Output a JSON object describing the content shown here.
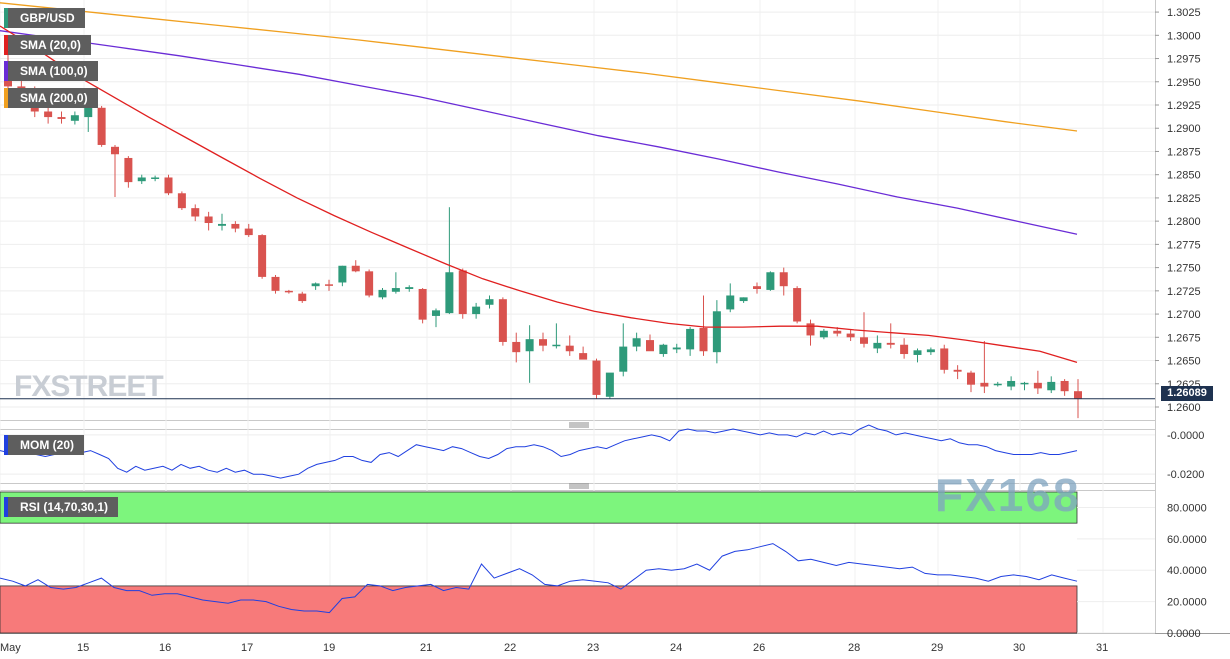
{
  "symbol": "GBP/USD",
  "indicators": {
    "sma20": {
      "label": "SMA (20,0)",
      "color": "#e02020"
    },
    "sma100": {
      "label": "SMA (100,0)",
      "color": "#6a2cd6"
    },
    "sma200": {
      "label": "SMA (200,0)",
      "color": "#f0a020"
    },
    "mom": {
      "label": "MOM (20)",
      "color": "#2040e0"
    },
    "rsi": {
      "label": "RSI (14,70,30,1)",
      "color": "#2040e0",
      "overbought": 70,
      "oversold": 30
    }
  },
  "last_price_label": "1.26089",
  "watermarks": {
    "fxstreet": "FXSTREET",
    "fx168": "FX168"
  },
  "colors": {
    "bull": "#2e9a7a",
    "bear": "#d9534f",
    "overbought_fill": "#7df57d",
    "oversold_fill": "#f77a7a"
  },
  "chart_data": {
    "type": "candlestick",
    "x_tick_labels": [
      "May",
      "15",
      "16",
      "17",
      "19",
      "21",
      "22",
      "23",
      "24",
      "26",
      "28",
      "29",
      "30",
      "31"
    ],
    "price_axis": {
      "ylim": [
        1.2586,
        1.3038
      ],
      "ticks": [
        "1.3025",
        "1.3000",
        "1.2975",
        "1.2950",
        "1.2925",
        "1.2900",
        "1.2875",
        "1.2850",
        "1.2825",
        "1.2800",
        "1.2775",
        "1.2750",
        "1.2725",
        "1.2700",
        "1.2675",
        "1.2650",
        "1.2625",
        "1.2600"
      ]
    },
    "last_price": 1.26089,
    "candles": [
      [
        1.2958,
        1.299,
        1.294,
        1.2945
      ],
      [
        1.2945,
        1.296,
        1.293,
        1.294
      ],
      [
        1.2935,
        1.2945,
        1.2912,
        1.2918
      ],
      [
        1.2918,
        1.2925,
        1.2905,
        1.2912
      ],
      [
        1.2912,
        1.2918,
        1.2905,
        1.291
      ],
      [
        1.2908,
        1.2918,
        1.2904,
        1.2914
      ],
      [
        1.2912,
        1.2928,
        1.2896,
        1.2924
      ],
      [
        1.2922,
        1.2924,
        1.288,
        1.2882
      ],
      [
        1.288,
        1.2882,
        1.2826,
        1.2872
      ],
      [
        1.2868,
        1.287,
        1.2836,
        1.2842
      ],
      [
        1.2843,
        1.285,
        1.284,
        1.2847
      ],
      [
        1.2847,
        1.2849,
        1.2843,
        1.2847
      ],
      [
        1.2847,
        1.285,
        1.2828,
        1.283
      ],
      [
        1.283,
        1.2832,
        1.2812,
        1.2814
      ],
      [
        1.2814,
        1.2818,
        1.28,
        1.2805
      ],
      [
        1.2805,
        1.281,
        1.279,
        1.2798
      ],
      [
        1.2795,
        1.2808,
        1.279,
        1.2797
      ],
      [
        1.2797,
        1.28,
        1.2788,
        1.2792
      ],
      [
        1.2792,
        1.2797,
        1.2783,
        1.2785
      ],
      [
        1.2785,
        1.2786,
        1.2738,
        1.274
      ],
      [
        1.274,
        1.2742,
        1.2722,
        1.2725
      ],
      [
        1.2725,
        1.2726,
        1.2722,
        1.2724
      ],
      [
        1.2722,
        1.2724,
        1.2712,
        1.2714
      ],
      [
        1.273,
        1.2734,
        1.2726,
        1.2733
      ],
      [
        1.2732,
        1.2737,
        1.2725,
        1.2731
      ],
      [
        1.2734,
        1.2752,
        1.273,
        1.2752
      ],
      [
        1.2752,
        1.2758,
        1.2745,
        1.2746
      ],
      [
        1.2746,
        1.2748,
        1.2718,
        1.272
      ],
      [
        1.2718,
        1.2728,
        1.2716,
        1.2726
      ],
      [
        1.2724,
        1.2745,
        1.2722,
        1.2728
      ],
      [
        1.2727,
        1.2731,
        1.2724,
        1.2729
      ],
      [
        1.2727,
        1.2728,
        1.269,
        1.2694
      ],
      [
        1.2698,
        1.2706,
        1.2686,
        1.2704
      ],
      [
        1.2701,
        1.2815,
        1.27,
        1.2745
      ],
      [
        1.2747,
        1.2749,
        1.2695,
        1.27
      ],
      [
        1.27,
        1.2712,
        1.2695,
        1.2708
      ],
      [
        1.271,
        1.272,
        1.2706,
        1.2716
      ],
      [
        1.2716,
        1.2718,
        1.2666,
        1.267
      ],
      [
        1.267,
        1.268,
        1.2648,
        1.2659
      ],
      [
        1.266,
        1.2688,
        1.2626,
        1.2673
      ],
      [
        1.2673,
        1.268,
        1.266,
        1.2666
      ],
      [
        1.2667,
        1.269,
        1.2663,
        1.2667
      ],
      [
        1.2666,
        1.2677,
        1.2655,
        1.266
      ],
      [
        1.2658,
        1.2665,
        1.2652,
        1.2651
      ],
      [
        1.265,
        1.2652,
        1.2609,
        1.2613
      ],
      [
        1.2611,
        1.2635,
        1.2609,
        1.2637
      ],
      [
        1.2638,
        1.269,
        1.2633,
        1.2665
      ],
      [
        1.2665,
        1.268,
        1.266,
        1.2674
      ],
      [
        1.2672,
        1.2678,
        1.2663,
        1.266
      ],
      [
        1.2657,
        1.2668,
        1.2654,
        1.2667
      ],
      [
        1.2662,
        1.2668,
        1.2658,
        1.2664
      ],
      [
        1.2662,
        1.2686,
        1.2655,
        1.2684
      ],
      [
        1.2685,
        1.272,
        1.2655,
        1.266
      ],
      [
        1.2659,
        1.2715,
        1.2647,
        1.2703
      ],
      [
        1.2705,
        1.2733,
        1.2702,
        1.272
      ],
      [
        1.2714,
        1.2718,
        1.2712,
        1.2718
      ],
      [
        1.273,
        1.2734,
        1.2722,
        1.2727
      ],
      [
        1.2726,
        1.2746,
        1.2725,
        1.2745
      ],
      [
        1.2745,
        1.275,
        1.272,
        1.273
      ],
      [
        1.2728,
        1.273,
        1.269,
        1.2692
      ],
      [
        1.269,
        1.2694,
        1.2666,
        1.2677
      ],
      [
        1.2675,
        1.2684,
        1.2673,
        1.2682
      ],
      [
        1.2682,
        1.2686,
        1.2676,
        1.2679
      ],
      [
        1.2679,
        1.2683,
        1.2671,
        1.2675
      ],
      [
        1.2675,
        1.2702,
        1.2664,
        1.2668
      ],
      [
        1.2663,
        1.2677,
        1.2658,
        1.2669
      ],
      [
        1.2669,
        1.269,
        1.2663,
        1.2667
      ],
      [
        1.2667,
        1.2674,
        1.2652,
        1.2657
      ],
      [
        1.2656,
        1.2663,
        1.2648,
        1.2661
      ],
      [
        1.2659,
        1.2664,
        1.2656,
        1.2662
      ],
      [
        1.2663,
        1.2667,
        1.2636,
        1.264
      ],
      [
        1.264,
        1.2645,
        1.263,
        1.2638
      ],
      [
        1.2637,
        1.2639,
        1.2616,
        1.2624
      ],
      [
        1.2626,
        1.2671,
        1.2615,
        1.2622
      ],
      [
        1.2624,
        1.2627,
        1.2622,
        1.2625
      ],
      [
        1.2622,
        1.2633,
        1.2618,
        1.2628
      ],
      [
        1.2626,
        1.2627,
        1.2618,
        1.2626
      ],
      [
        1.2626,
        1.2639,
        1.2614,
        1.262
      ],
      [
        1.2618,
        1.2633,
        1.2615,
        1.2627
      ],
      [
        1.2628,
        1.263,
        1.2612,
        1.2617
      ],
      [
        1.2617,
        1.263,
        1.2588,
        1.2609
      ]
    ],
    "sma20": [
      1.301,
      1.2985,
      1.2958,
      1.2935,
      1.2912,
      1.289,
      1.2868,
      1.2846,
      1.2825,
      1.2806,
      1.2788,
      1.2771,
      1.2754,
      1.2738,
      1.2725,
      1.2713,
      1.2703,
      1.2696,
      1.269,
      1.2686,
      1.2686,
      1.2687,
      1.2687,
      1.2683,
      1.268,
      1.2677,
      1.2672,
      1.2666,
      1.266,
      1.2648
    ],
    "sma100": [
      1.3005,
      1.2996,
      1.2987,
      1.2978,
      1.2968,
      1.2958,
      1.2946,
      1.2934,
      1.292,
      1.2906,
      1.2892,
      1.288,
      1.2867,
      1.2853,
      1.284,
      1.2826,
      1.2814,
      1.28,
      1.2786
    ],
    "sma200": [
      1.3035,
      1.3027,
      1.3019,
      1.3011,
      1.3003,
      1.2995,
      1.2986,
      1.2977,
      1.2968,
      1.2959,
      1.2949,
      1.2939,
      1.2929,
      1.2918,
      1.2907,
      1.2897
    ],
    "momentum": {
      "ylim": [
        -0.0245,
        0.0025
      ],
      "ticks": [
        "-0.0000",
        "-0.0200"
      ],
      "values": [
        -0.008,
        -0.009,
        -0.007,
        -0.008,
        -0.01,
        -0.011,
        -0.01,
        -0.009,
        -0.01,
        -0.009,
        -0.008,
        -0.01,
        -0.012,
        -0.017,
        -0.019,
        -0.016,
        -0.018,
        -0.017,
        -0.016,
        -0.018,
        -0.015,
        -0.017,
        -0.016,
        -0.018,
        -0.019,
        -0.017,
        -0.019,
        -0.018,
        -0.02,
        -0.02,
        -0.021,
        -0.022,
        -0.021,
        -0.02,
        -0.017,
        -0.015,
        -0.014,
        -0.013,
        -0.011,
        -0.011,
        -0.013,
        -0.014,
        -0.01,
        -0.009,
        -0.011,
        -0.008,
        -0.005,
        -0.006,
        -0.007,
        -0.008,
        -0.006,
        -0.007,
        -0.009,
        -0.011,
        -0.012,
        -0.01,
        -0.007,
        -0.006,
        -0.006,
        -0.005,
        -0.006,
        -0.008,
        -0.011,
        -0.01,
        -0.008,
        -0.007,
        -0.006,
        -0.007,
        -0.005,
        -0.003,
        -0.002,
        -0.001,
        0.0,
        -0.001,
        -0.003,
        0.002,
        0.003,
        0.002,
        0.002,
        0.001,
        0.002,
        0.003,
        0.002,
        0.001,
        0.0,
        0.001,
        0.0,
        0.0,
        -0.001,
        0.001,
        0.0,
        0.002,
        0.0,
        0.001,
        0.0,
        0.003,
        0.005,
        0.003,
        0.002,
        0.0,
        0.001,
        0.0,
        -0.001,
        -0.002,
        -0.003,
        -0.002,
        -0.004,
        -0.005,
        -0.005,
        -0.006,
        -0.008,
        -0.009,
        -0.01,
        -0.01,
        -0.01,
        -0.009,
        -0.01,
        -0.01,
        -0.009,
        -0.008
      ]
    },
    "rsi": {
      "ylim": [
        0,
        90.5
      ],
      "ticks": [
        "80.0000",
        "60.0000",
        "40.0000",
        "20.0000",
        "0.0000"
      ],
      "values": [
        35,
        33,
        30,
        34,
        29,
        28,
        29,
        32,
        35,
        29,
        27,
        27,
        24,
        25,
        25,
        23,
        21,
        20,
        19,
        21,
        21,
        20,
        17,
        15,
        14,
        14,
        13,
        22,
        23,
        31,
        30,
        27,
        29,
        30,
        31,
        27,
        29,
        28,
        44,
        35,
        38,
        41,
        37,
        31,
        30,
        33,
        34,
        33,
        32,
        28,
        34,
        40,
        41,
        40,
        41,
        44,
        40,
        49,
        52,
        53,
        55,
        57,
        52,
        46,
        47,
        45,
        43,
        45,
        44,
        43,
        42,
        41,
        42,
        38,
        37,
        37,
        36,
        35,
        33,
        36,
        37,
        36,
        34,
        37,
        35,
        33
      ]
    }
  }
}
